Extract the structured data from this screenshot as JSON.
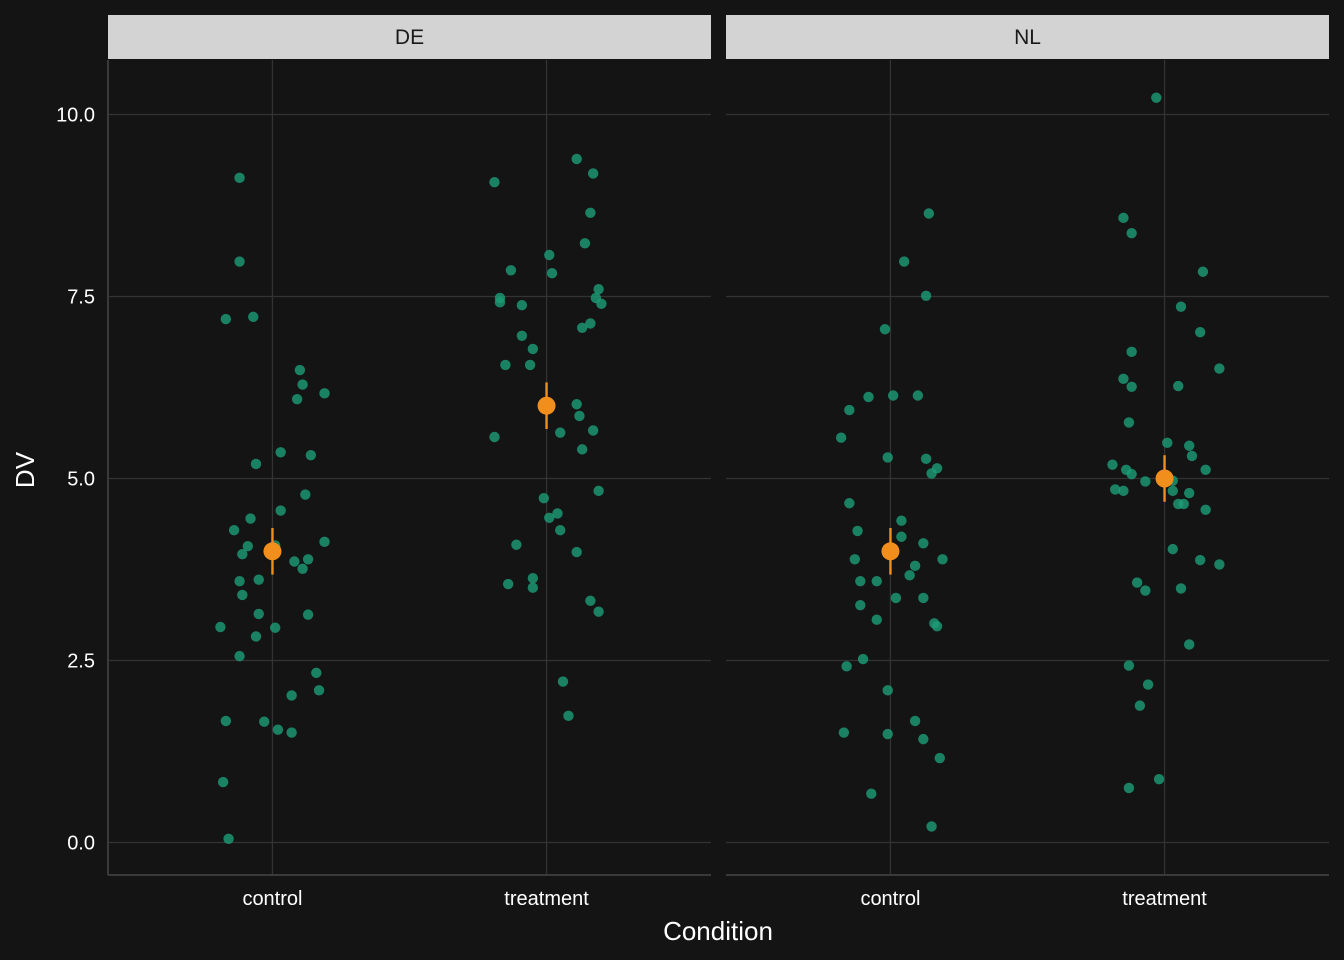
{
  "chart_data": {
    "type": "scatter",
    "xlabel": "Condition",
    "ylabel": "DV",
    "categories": [
      "control",
      "treatment"
    ],
    "ylim": [
      -0.45,
      10.8
    ],
    "yticks": [
      0.0,
      2.5,
      5.0,
      7.5,
      10.0
    ],
    "ytick_labels": [
      "0.0",
      "2.5",
      "5.0",
      "7.5",
      "10.0"
    ],
    "grid": true,
    "colors": {
      "points": "#1b9e77",
      "summary": "#f28e1c",
      "background": "#141414",
      "grid": "#333333",
      "strip": "#d3d3d3"
    },
    "panels": [
      {
        "label": "DE",
        "groups": [
          {
            "category": "control",
            "points": [
              [
                -0.19,
                2.96
              ],
              [
                -0.18,
                0.83
              ],
              [
                -0.17,
                1.67
              ],
              [
                -0.17,
                7.19
              ],
              [
                -0.16,
                0.05
              ],
              [
                -0.14,
                4.29
              ],
              [
                -0.12,
                2.56
              ],
              [
                -0.12,
                3.59
              ],
              [
                -0.12,
                9.13
              ],
              [
                -0.12,
                7.98
              ],
              [
                -0.11,
                3.4
              ],
              [
                -0.11,
                3.96
              ],
              [
                -0.09,
                4.07
              ],
              [
                -0.08,
                4.45
              ],
              [
                -0.07,
                7.22
              ],
              [
                -0.06,
                5.2
              ],
              [
                -0.06,
                2.83
              ],
              [
                -0.05,
                3.61
              ],
              [
                -0.05,
                3.14
              ],
              [
                -0.03,
                1.66
              ],
              [
                0.01,
                4.08
              ],
              [
                0.01,
                2.95
              ],
              [
                0.02,
                1.55
              ],
              [
                0.03,
                5.36
              ],
              [
                0.03,
                4.56
              ],
              [
                0.07,
                2.02
              ],
              [
                0.07,
                1.51
              ],
              [
                0.08,
                3.86
              ],
              [
                0.09,
                6.09
              ],
              [
                0.1,
                6.49
              ],
              [
                0.11,
                3.76
              ],
              [
                0.11,
                6.29
              ],
              [
                0.12,
                4.78
              ],
              [
                0.13,
                3.13
              ],
              [
                0.13,
                3.89
              ],
              [
                0.14,
                5.32
              ],
              [
                0.16,
                2.33
              ],
              [
                0.17,
                2.09
              ],
              [
                0.19,
                6.17
              ],
              [
                0.19,
                4.13
              ]
            ],
            "mean": 4.0,
            "ci": [
              3.68,
              4.32
            ]
          },
          {
            "category": "treatment",
            "points": [
              [
                -0.19,
                5.57
              ],
              [
                -0.19,
                9.07
              ],
              [
                -0.17,
                7.42
              ],
              [
                -0.17,
                7.48
              ],
              [
                -0.15,
                6.56
              ],
              [
                -0.14,
                3.55
              ],
              [
                -0.13,
                7.86
              ],
              [
                -0.11,
                4.09
              ],
              [
                -0.09,
                6.96
              ],
              [
                -0.09,
                7.38
              ],
              [
                -0.06,
                6.56
              ],
              [
                -0.05,
                3.63
              ],
              [
                -0.05,
                3.5
              ],
              [
                -0.05,
                6.78
              ],
              [
                -0.01,
                4.73
              ],
              [
                0.01,
                8.07
              ],
              [
                0.01,
                4.46
              ],
              [
                0.02,
                7.82
              ],
              [
                0.04,
                4.52
              ],
              [
                0.05,
                5.63
              ],
              [
                0.05,
                4.29
              ],
              [
                0.08,
                1.74
              ],
              [
                0.06,
                2.21
              ],
              [
                0.11,
                3.99
              ],
              [
                0.11,
                6.02
              ],
              [
                0.11,
                9.39
              ],
              [
                0.12,
                5.86
              ],
              [
                0.13,
                7.07
              ],
              [
                0.13,
                5.4
              ],
              [
                0.14,
                8.23
              ],
              [
                0.16,
                8.65
              ],
              [
                0.16,
                7.13
              ],
              [
                0.16,
                3.32
              ],
              [
                0.17,
                5.66
              ],
              [
                0.17,
                9.19
              ],
              [
                0.18,
                7.48
              ],
              [
                0.19,
                7.6
              ],
              [
                0.19,
                3.17
              ],
              [
                0.19,
                4.83
              ],
              [
                0.2,
                7.4
              ]
            ],
            "mean": 6.0,
            "ci": [
              5.68,
              6.32
            ]
          }
        ]
      },
      {
        "label": "NL",
        "groups": [
          {
            "category": "control",
            "points": [
              [
                -0.18,
                5.56
              ],
              [
                -0.17,
                1.51
              ],
              [
                -0.16,
                2.42
              ],
              [
                -0.15,
                5.94
              ],
              [
                -0.15,
                4.66
              ],
              [
                -0.13,
                3.89
              ],
              [
                -0.12,
                4.28
              ],
              [
                -0.11,
                3.26
              ],
              [
                -0.11,
                3.59
              ],
              [
                -0.1,
                2.52
              ],
              [
                -0.08,
                6.12
              ],
              [
                -0.07,
                0.67
              ],
              [
                -0.05,
                3.59
              ],
              [
                -0.05,
                3.06
              ],
              [
                -0.02,
                7.05
              ],
              [
                -0.01,
                5.29
              ],
              [
                -0.01,
                1.49
              ],
              [
                -0.01,
                2.09
              ],
              [
                0.01,
                6.14
              ],
              [
                0.02,
                3.36
              ],
              [
                0.04,
                4.42
              ],
              [
                0.04,
                4.2
              ],
              [
                0.05,
                7.98
              ],
              [
                0.07,
                3.67
              ],
              [
                0.09,
                3.8
              ],
              [
                0.09,
                1.67
              ],
              [
                0.1,
                6.14
              ],
              [
                0.12,
                4.11
              ],
              [
                0.12,
                1.42
              ],
              [
                0.12,
                3.36
              ],
              [
                0.13,
                7.51
              ],
              [
                0.13,
                5.27
              ],
              [
                0.14,
                8.64
              ],
              [
                0.15,
                0.22
              ],
              [
                0.15,
                5.07
              ],
              [
                0.16,
                3.01
              ],
              [
                0.17,
                5.14
              ],
              [
                0.17,
                2.97
              ],
              [
                0.18,
                1.16
              ],
              [
                0.19,
                3.89
              ]
            ],
            "mean": 4.0,
            "ci": [
              3.68,
              4.32
            ]
          },
          {
            "category": "treatment",
            "points": [
              [
                -0.19,
                5.19
              ],
              [
                -0.18,
                4.85
              ],
              [
                -0.15,
                6.37
              ],
              [
                -0.15,
                4.83
              ],
              [
                -0.15,
                8.58
              ],
              [
                -0.14,
                5.12
              ],
              [
                -0.13,
                2.43
              ],
              [
                -0.13,
                5.77
              ],
              [
                -0.13,
                0.75
              ],
              [
                -0.12,
                8.37
              ],
              [
                -0.12,
                6.26
              ],
              [
                -0.12,
                6.74
              ],
              [
                -0.12,
                5.06
              ],
              [
                -0.1,
                3.57
              ],
              [
                -0.09,
                1.88
              ],
              [
                -0.07,
                4.96
              ],
              [
                -0.07,
                3.46
              ],
              [
                -0.06,
                2.17
              ],
              [
                -0.03,
                10.23
              ],
              [
                -0.02,
                0.87
              ],
              [
                0.01,
                5.49
              ],
              [
                0.03,
                4.03
              ],
              [
                0.03,
                4.83
              ],
              [
                0.03,
                4.97
              ],
              [
                0.05,
                6.27
              ],
              [
                0.05,
                4.65
              ],
              [
                0.06,
                7.36
              ],
              [
                0.06,
                3.49
              ],
              [
                0.07,
                4.65
              ],
              [
                0.09,
                5.45
              ],
              [
                0.09,
                2.72
              ],
              [
                0.09,
                4.8
              ],
              [
                0.1,
                5.31
              ],
              [
                0.13,
                3.88
              ],
              [
                0.13,
                7.01
              ],
              [
                0.14,
                7.84
              ],
              [
                0.15,
                4.57
              ],
              [
                0.15,
                5.12
              ],
              [
                0.2,
                6.51
              ],
              [
                0.2,
                3.82
              ]
            ],
            "mean": 5.0,
            "ci": [
              4.68,
              5.32
            ]
          }
        ]
      }
    ]
  }
}
